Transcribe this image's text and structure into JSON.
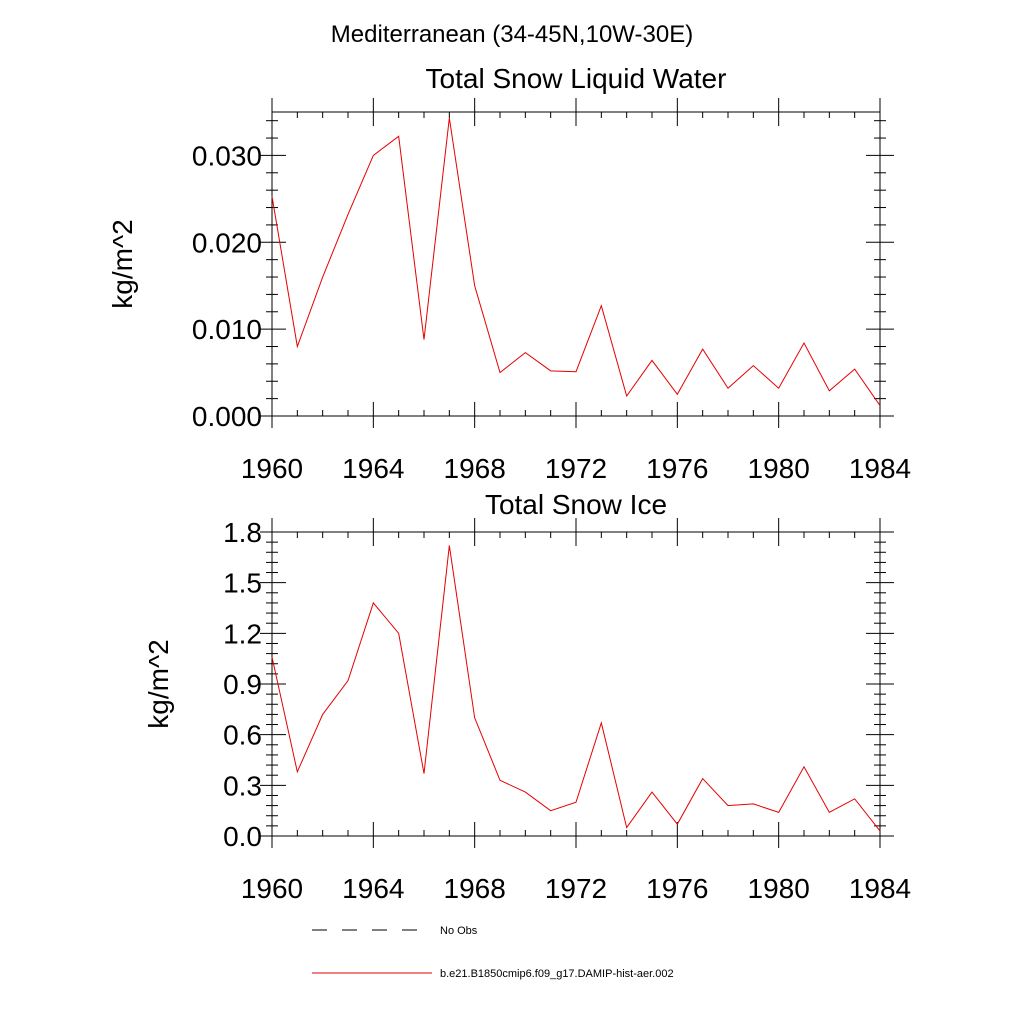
{
  "figure": {
    "title": "Mediterranean (34-45N,10W-30E)"
  },
  "chart_data": [
    {
      "type": "line",
      "title": "Total Snow Liquid Water",
      "xlabel": "",
      "ylabel": "kg/m^2",
      "xlim": [
        1960,
        1984
      ],
      "ylim": [
        0,
        0.035
      ],
      "x_ticks": [
        1960,
        1964,
        1968,
        1972,
        1976,
        1980,
        1984
      ],
      "x_tick_labels": [
        "1960",
        "1964",
        "1968",
        "1972",
        "1976",
        "1980",
        "1984"
      ],
      "y_ticks": [
        0,
        0.01,
        0.02,
        0.03
      ],
      "y_tick_labels": [
        "0.000",
        "0.010",
        "0.020",
        "0.030"
      ],
      "grid": false,
      "series": [
        {
          "name": "b.e21.B1850cmip6.f09_g17.DAMIP-hist-aer.002",
          "color": "#e60000",
          "x": [
            1960,
            1961,
            1962,
            1963,
            1964,
            1965,
            1966,
            1967,
            1968,
            1969,
            1970,
            1971,
            1972,
            1973,
            1974,
            1975,
            1976,
            1977,
            1978,
            1979,
            1980,
            1981,
            1982,
            1983,
            1984
          ],
          "y": [
            0.0253,
            0.008,
            0.016,
            0.0232,
            0.03,
            0.0322,
            0.0088,
            0.0343,
            0.015,
            0.005,
            0.0073,
            0.0052,
            0.0051,
            0.0127,
            0.0023,
            0.0064,
            0.0025,
            0.0077,
            0.0032,
            0.0058,
            0.0032,
            0.0084,
            0.0029,
            0.0054,
            0.0012
          ]
        }
      ]
    },
    {
      "type": "line",
      "title": "Total Snow Ice",
      "xlabel": "",
      "ylabel": "kg/m^2",
      "xlim": [
        1960,
        1984
      ],
      "ylim": [
        0,
        1.8
      ],
      "x_ticks": [
        1960,
        1964,
        1968,
        1972,
        1976,
        1980,
        1984
      ],
      "x_tick_labels": [
        "1960",
        "1964",
        "1968",
        "1972",
        "1976",
        "1980",
        "1984"
      ],
      "y_ticks": [
        0,
        0.3,
        0.6,
        0.9,
        1.2,
        1.5,
        1.8
      ],
      "y_tick_labels": [
        "0.0",
        "0.3",
        "0.6",
        "0.9",
        "1.2",
        "1.5",
        "1.8"
      ],
      "grid": false,
      "series": [
        {
          "name": "b.e21.B1850cmip6.f09_g17.DAMIP-hist-aer.002",
          "color": "#e60000",
          "x": [
            1960,
            1961,
            1962,
            1963,
            1964,
            1965,
            1966,
            1967,
            1968,
            1969,
            1970,
            1971,
            1972,
            1973,
            1974,
            1975,
            1976,
            1977,
            1978,
            1979,
            1980,
            1981,
            1982,
            1983,
            1984
          ],
          "y": [
            1.06,
            0.38,
            0.72,
            0.92,
            1.38,
            1.2,
            0.37,
            1.72,
            0.7,
            0.33,
            0.26,
            0.15,
            0.2,
            0.67,
            0.05,
            0.26,
            0.07,
            0.34,
            0.18,
            0.19,
            0.14,
            0.41,
            0.14,
            0.22,
            0.03
          ]
        }
      ]
    }
  ],
  "legend": {
    "position": "bottom-center",
    "entries": [
      {
        "label": "No Obs",
        "style": "dashed",
        "color": "#000000"
      },
      {
        "label": "b.e21.B1850cmip6.f09_g17.DAMIP-hist-aer.002",
        "style": "solid",
        "color": "#e60000"
      }
    ]
  }
}
